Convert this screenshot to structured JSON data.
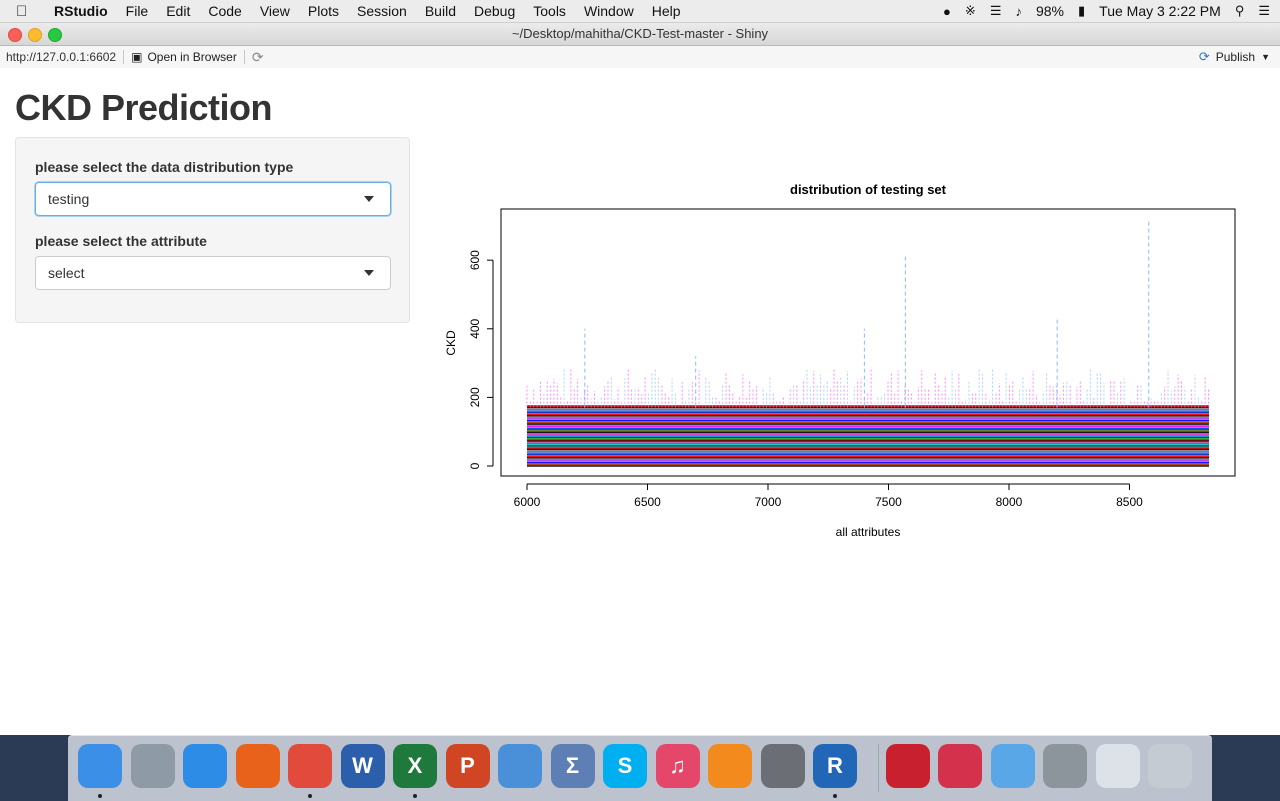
{
  "menubar": {
    "app_name": "RStudio",
    "items": [
      "File",
      "Edit",
      "Code",
      "View",
      "Plots",
      "Session",
      "Build",
      "Debug",
      "Tools",
      "Window",
      "Help"
    ],
    "battery": "98%",
    "datetime": "Tue May 3  2:22 PM"
  },
  "window": {
    "title": "~/Desktop/mahitha/CKD-Test-master - Shiny"
  },
  "toolbar": {
    "url": "http://127.0.0.1:6602",
    "open_in_browser": "Open in Browser",
    "publish": "Publish"
  },
  "page": {
    "title": "CKD Prediction",
    "distribution_label": "please select the data distribution type",
    "distribution_value": "testing",
    "attribute_label": "please select the attribute",
    "attribute_value": "select"
  },
  "chart_data": {
    "type": "line",
    "title": "distribution of testing set",
    "xlabel": "all attributes",
    "ylabel": "CKD",
    "xlim": [
      6000,
      8830
    ],
    "ylim": [
      0,
      720
    ],
    "xticks": [
      6000,
      6500,
      7000,
      7500,
      8000,
      8500
    ],
    "yticks": [
      0,
      200,
      400,
      600
    ],
    "grid": false,
    "legend": "none",
    "series_colors": [
      "#000000",
      "#ff0000",
      "#22aa22",
      "#0000ff",
      "#00cccc",
      "#ff00ff",
      "#888888"
    ],
    "peaks": [
      {
        "x": 6240,
        "y": 400
      },
      {
        "x": 6700,
        "y": 320
      },
      {
        "x": 7400,
        "y": 400
      },
      {
        "x": 7570,
        "y": 615
      },
      {
        "x": 8200,
        "y": 430
      },
      {
        "x": 8580,
        "y": 720
      }
    ]
  },
  "dock": {
    "apps": [
      {
        "name": "finder-icon",
        "label": "",
        "color": "#3b8fe6"
      },
      {
        "name": "launchpad-icon",
        "label": "",
        "color": "#8e9aa6"
      },
      {
        "name": "safari-icon",
        "label": "",
        "color": "#2d8ce6"
      },
      {
        "name": "firefox-icon",
        "label": "",
        "color": "#e8621c"
      },
      {
        "name": "chrome-icon",
        "label": "",
        "color": "#e24a3b"
      },
      {
        "name": "word-icon",
        "label": "W",
        "color": "#2b5fab"
      },
      {
        "name": "excel-icon",
        "label": "X",
        "color": "#1e7a3c"
      },
      {
        "name": "powerpoint-icon",
        "label": "P",
        "color": "#d04524"
      },
      {
        "name": "keynote-icon",
        "label": "",
        "color": "#4a90d9"
      },
      {
        "name": "calculator-icon",
        "label": "Σ",
        "color": "#5d7fb5"
      },
      {
        "name": "skype-icon",
        "label": "S",
        "color": "#00aff0"
      },
      {
        "name": "itunes-icon",
        "label": "♫",
        "color": "#e5476a"
      },
      {
        "name": "vlc-icon",
        "label": "",
        "color": "#f28a1e"
      },
      {
        "name": "system-preferences-icon",
        "label": "",
        "color": "#6b6f75"
      },
      {
        "name": "r-icon",
        "label": "R",
        "color": "#2266b8"
      },
      {
        "name": "creative-cloud-icon",
        "label": "",
        "color": "#c8202f"
      },
      {
        "name": "photo-booth-icon",
        "label": "",
        "color": "#d4314d"
      },
      {
        "name": "downloads-folder-icon",
        "label": "",
        "color": "#5aa7e8"
      },
      {
        "name": "disk-utility-icon",
        "label": "",
        "color": "#8c949c"
      },
      {
        "name": "chrome-window-icon",
        "label": "",
        "color": "#dde2e8"
      },
      {
        "name": "trash-icon",
        "label": "",
        "color": "#c5cbd2"
      }
    ]
  }
}
